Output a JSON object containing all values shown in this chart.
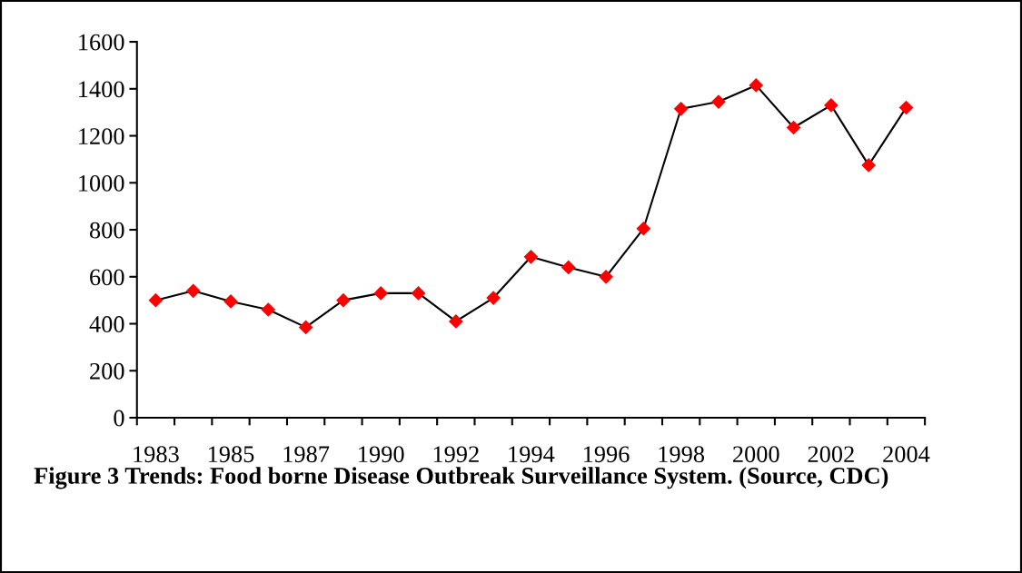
{
  "chart_data": {
    "type": "line",
    "categories": [
      "1983",
      null,
      "1985",
      null,
      "1987",
      null,
      "1990",
      null,
      "1992",
      null,
      "1994",
      null,
      "1996",
      null,
      "1998",
      null,
      "2000",
      null,
      "2002",
      null,
      "2004"
    ],
    "series": [
      {
        "color": "#ff0000",
        "values": [
          500,
          540,
          495,
          460,
          385,
          500,
          530,
          530,
          410,
          510,
          685,
          640,
          600,
          805,
          1315,
          1345,
          1415,
          1235,
          1330,
          1075,
          1320
        ]
      }
    ],
    "ylim": [
      0,
      1600
    ],
    "yticks": [
      0,
      200,
      400,
      600,
      800,
      1000,
      1200,
      1400,
      1600
    ],
    "grid": false,
    "legend": false,
    "marker": "diamond",
    "line_style": "solid",
    "annotations": [
      "Figure 3 Trends: Food borne Disease Outbreak Surveillance System. (Source, CDC)"
    ]
  }
}
